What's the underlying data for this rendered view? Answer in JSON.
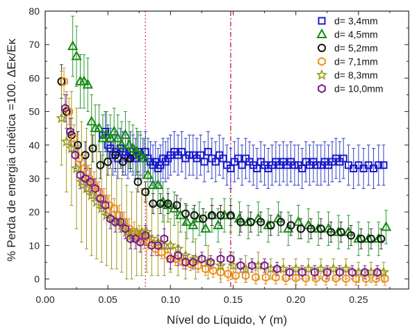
{
  "chart_data": {
    "type": "scatter",
    "title": "",
    "xlabel": "Nível do Líquido, Y (m)",
    "ylabel": "% Perda de energia cinética =100. ΔEκ/Eκ",
    "xlim": [
      0.0,
      0.29
    ],
    "ylim": [
      -3,
      80
    ],
    "x_ticks": [
      "0.00",
      "0.05",
      "0.10",
      "0.15",
      "0.20",
      "0.25"
    ],
    "y_ticks": [
      "0",
      "10",
      "20",
      "30",
      "40",
      "50",
      "60",
      "70",
      "80"
    ],
    "legend_position": "top-right",
    "vertical_lines": [
      {
        "x": 0.08,
        "color": "#e0306a",
        "style": "dotted"
      },
      {
        "x": 0.148,
        "color": "#cc1133",
        "style": "dash-dot"
      }
    ],
    "series": [
      {
        "name": "d= 3,4mm",
        "marker": "square",
        "color": "#1c1ccc",
        "error_color": "#3040c8",
        "x": [
          0.046,
          0.048,
          0.05,
          0.052,
          0.054,
          0.056,
          0.058,
          0.06,
          0.062,
          0.064,
          0.066,
          0.068,
          0.07,
          0.072,
          0.074,
          0.076,
          0.078,
          0.08,
          0.082,
          0.084,
          0.086,
          0.088,
          0.09,
          0.092,
          0.094,
          0.096,
          0.098,
          0.1,
          0.103,
          0.106,
          0.109,
          0.112,
          0.115,
          0.118,
          0.121,
          0.124,
          0.127,
          0.13,
          0.133,
          0.136,
          0.139,
          0.142,
          0.145,
          0.148,
          0.151,
          0.154,
          0.157,
          0.16,
          0.163,
          0.166,
          0.169,
          0.172,
          0.175,
          0.178,
          0.181,
          0.184,
          0.187,
          0.19,
          0.193,
          0.196,
          0.199,
          0.202,
          0.205,
          0.208,
          0.211,
          0.214,
          0.217,
          0.22,
          0.223,
          0.226,
          0.229,
          0.232,
          0.235,
          0.238,
          0.242,
          0.246,
          0.25,
          0.254,
          0.258,
          0.262,
          0.266,
          0.27
        ],
        "y": [
          43,
          44,
          40,
          39,
          37,
          38,
          36,
          39,
          38,
          37,
          36,
          38,
          37,
          36,
          38,
          37,
          36,
          38,
          36,
          35,
          34,
          35,
          33,
          34,
          36,
          35,
          36,
          37,
          38,
          37,
          38,
          36,
          37,
          37,
          36,
          37,
          35,
          38,
          36,
          35,
          37,
          36,
          34,
          33,
          35,
          36,
          34,
          36,
          35,
          34,
          33,
          35,
          34,
          33,
          34,
          35,
          34,
          35,
          34,
          35,
          34,
          34,
          33,
          35,
          34,
          35,
          34,
          34,
          35,
          34,
          35,
          36,
          35,
          36,
          34,
          33,
          34,
          33,
          34,
          33,
          34,
          34
        ],
        "err": [
          6,
          6,
          6,
          6,
          6,
          6,
          6,
          6,
          6,
          6,
          6,
          6,
          6,
          6,
          6,
          6,
          6,
          6,
          6,
          6,
          6,
          6,
          6,
          6,
          6,
          6,
          6,
          6,
          6,
          6,
          6,
          6,
          6,
          6,
          6,
          6,
          6,
          6,
          6,
          6,
          6,
          6,
          6,
          6,
          6,
          6,
          6,
          6,
          6,
          6,
          6,
          6,
          6,
          6,
          6,
          6,
          6,
          6,
          6,
          6,
          6,
          6,
          6,
          6,
          6,
          6,
          6,
          6,
          6,
          6,
          6,
          6,
          6,
          6,
          6,
          6,
          6,
          6,
          6,
          6,
          6,
          6
        ]
      },
      {
        "name": "d= 4,5mm",
        "marker": "triangle",
        "color": "#178a17",
        "error_color": "#2d9a2d",
        "x": [
          0.022,
          0.025,
          0.028,
          0.031,
          0.034,
          0.037,
          0.04,
          0.043,
          0.046,
          0.049,
          0.052,
          0.055,
          0.058,
          0.061,
          0.064,
          0.067,
          0.07,
          0.073,
          0.076,
          0.079,
          0.082,
          0.086,
          0.09,
          0.094,
          0.098,
          0.103,
          0.108,
          0.113,
          0.118,
          0.123,
          0.128,
          0.133,
          0.138,
          0.143,
          0.148,
          0.155,
          0.162,
          0.17,
          0.178,
          0.186,
          0.194,
          0.202,
          0.21,
          0.218,
          0.226,
          0.234,
          0.242,
          0.25,
          0.258,
          0.266,
          0.272
        ],
        "y": [
          69.5,
          66.5,
          59,
          59,
          58,
          47,
          45,
          45,
          42,
          43,
          42,
          44,
          42,
          40,
          43,
          40,
          39,
          38,
          37,
          36,
          31,
          28,
          28,
          23,
          22,
          21,
          19,
          17,
          16,
          18,
          15,
          19,
          16,
          19,
          19,
          18,
          17,
          18,
          16,
          18,
          15,
          17,
          16,
          15,
          15,
          14,
          14,
          12,
          12,
          12,
          15.5
        ],
        "err": [
          9,
          9,
          8,
          8,
          8,
          8,
          7,
          7,
          7,
          7,
          7,
          7,
          7,
          7,
          7,
          7,
          7,
          7,
          7,
          6,
          6,
          6,
          6,
          6,
          5,
          5,
          5,
          5,
          5,
          5,
          5,
          5,
          5,
          5,
          5,
          5,
          5,
          5,
          5,
          5,
          5,
          5,
          5,
          5,
          5,
          5,
          5,
          5,
          5,
          5,
          5
        ]
      },
      {
        "name": "d= 5,2mm",
        "marker": "circle",
        "color": "#111111",
        "error_color": "#333333",
        "x": [
          0.013,
          0.017,
          0.021,
          0.026,
          0.032,
          0.038,
          0.044,
          0.05,
          0.056,
          0.062,
          0.068,
          0.074,
          0.08,
          0.086,
          0.092,
          0.098,
          0.105,
          0.112,
          0.119,
          0.126,
          0.133,
          0.14,
          0.148,
          0.156,
          0.164,
          0.172,
          0.18,
          0.188,
          0.196,
          0.204,
          0.212,
          0.22,
          0.228,
          0.236,
          0.244,
          0.252,
          0.26,
          0.268
        ],
        "y": [
          59,
          50,
          43,
          40,
          37,
          39,
          34,
          35,
          37,
          35,
          36,
          29,
          26,
          22.5,
          22.5,
          22.5,
          22,
          19.5,
          19,
          18,
          19,
          19,
          19,
          17,
          17,
          17,
          16,
          17,
          16,
          15,
          15,
          15,
          14,
          14,
          13,
          12,
          12,
          12
        ],
        "err": [
          5,
          5,
          5,
          4,
          4,
          4,
          4,
          4,
          4,
          4,
          3,
          3,
          3,
          3,
          3,
          3,
          3,
          3,
          3,
          3,
          3,
          3,
          3,
          3,
          3,
          3,
          3,
          3,
          3,
          3,
          3,
          3,
          3,
          3,
          3,
          3,
          3,
          3
        ]
      },
      {
        "name": "d= 7,1mm",
        "marker": "hexagon",
        "color": "#f0901a",
        "error_color": "#e08a20",
        "x": [
          0.015,
          0.019,
          0.023,
          0.027,
          0.031,
          0.035,
          0.039,
          0.043,
          0.047,
          0.051,
          0.055,
          0.059,
          0.063,
          0.067,
          0.071,
          0.075,
          0.079,
          0.083,
          0.088,
          0.093,
          0.098,
          0.104,
          0.11,
          0.116,
          0.122,
          0.128,
          0.134,
          0.14,
          0.146,
          0.152,
          0.16,
          0.168,
          0.176,
          0.184,
          0.192,
          0.2,
          0.208,
          0.216,
          0.224,
          0.232,
          0.24,
          0.248,
          0.256,
          0.264,
          0.271
        ],
        "y": [
          59,
          50,
          42,
          36,
          33,
          30,
          28,
          26,
          24,
          22,
          21,
          19,
          17,
          15,
          14,
          13,
          12,
          11,
          9,
          8,
          7,
          6,
          5,
          4.5,
          4,
          3,
          2.5,
          2,
          1.5,
          1,
          1,
          0.5,
          0.5,
          0.5,
          0.3,
          0.3,
          0.2,
          0.2,
          0.2,
          0.2,
          0.1,
          0.1,
          0.1,
          0.1,
          0.1
        ],
        "err": [
          4,
          4,
          4,
          4,
          4,
          4,
          4,
          3,
          3,
          3,
          3,
          3,
          3,
          3,
          3,
          3,
          3,
          2,
          2,
          2,
          2,
          2,
          2,
          2,
          2,
          2,
          2,
          2,
          2,
          2,
          2,
          2,
          2,
          2,
          2,
          2,
          2,
          2,
          2,
          2,
          2,
          2,
          2,
          2,
          2
        ]
      },
      {
        "name": "d= 8,3mm",
        "marker": "star",
        "color": "#9a9a1a",
        "error_color": "#9a9a22",
        "x": [
          0.013,
          0.017,
          0.021,
          0.025,
          0.029,
          0.033,
          0.037,
          0.041,
          0.045,
          0.049,
          0.053,
          0.057,
          0.061,
          0.065,
          0.069,
          0.073,
          0.077,
          0.081,
          0.085,
          0.09,
          0.095,
          0.1,
          0.106,
          0.112,
          0.12,
          0.13,
          0.14,
          0.15,
          0.16,
          0.17,
          0.18,
          0.19,
          0.2,
          0.21,
          0.22,
          0.23,
          0.24,
          0.25,
          0.26,
          0.27
        ],
        "y": [
          48,
          41,
          39,
          33,
          29,
          27,
          25,
          23,
          21,
          19,
          18,
          17,
          16,
          14,
          13,
          14,
          14,
          14,
          12,
          11,
          10,
          10,
          9,
          7,
          6,
          5,
          4,
          4,
          3,
          4,
          3,
          3,
          3,
          3,
          3,
          3,
          3,
          2,
          2,
          2
        ],
        "err": [
          14,
          15,
          17,
          18,
          18,
          18,
          18,
          17,
          16,
          15,
          15,
          14,
          14,
          14,
          13,
          13,
          13,
          12,
          11,
          10,
          9,
          8,
          8,
          7,
          6,
          5,
          5,
          4,
          4,
          4,
          3,
          3,
          3,
          3,
          3,
          3,
          3,
          3,
          3,
          3
        ]
      },
      {
        "name": "d= 10,0mm",
        "marker": "hexagon",
        "color": "#7a1a85",
        "error_color": "#7a2a85",
        "x": [
          0.016,
          0.02,
          0.024,
          0.028,
          0.032,
          0.036,
          0.04,
          0.044,
          0.048,
          0.052,
          0.056,
          0.06,
          0.064,
          0.068,
          0.072,
          0.076,
          0.08,
          0.085,
          0.09,
          0.095,
          0.1,
          0.106,
          0.112,
          0.118,
          0.125,
          0.132,
          0.14,
          0.148,
          0.156,
          0.165,
          0.175,
          0.185,
          0.195,
          0.205,
          0.215,
          0.225,
          0.235,
          0.245,
          0.255,
          0.265
        ],
        "y": [
          51,
          44,
          37,
          31,
          30,
          29,
          27,
          24,
          22,
          18,
          17,
          17,
          15,
          12,
          12,
          11,
          13,
          10,
          10,
          12,
          6,
          7,
          5,
          5,
          6,
          5,
          6,
          6,
          4,
          4,
          4,
          3,
          2,
          2,
          2,
          2,
          2,
          2,
          2,
          2
        ],
        "err": [
          4,
          4,
          4,
          4,
          4,
          4,
          3,
          3,
          3,
          3,
          3,
          3,
          3,
          3,
          3,
          3,
          3,
          3,
          3,
          3,
          3,
          3,
          2,
          2,
          2,
          2,
          2,
          2,
          2,
          2,
          2,
          2,
          2,
          2,
          2,
          2,
          2,
          2,
          2,
          2
        ]
      }
    ]
  }
}
